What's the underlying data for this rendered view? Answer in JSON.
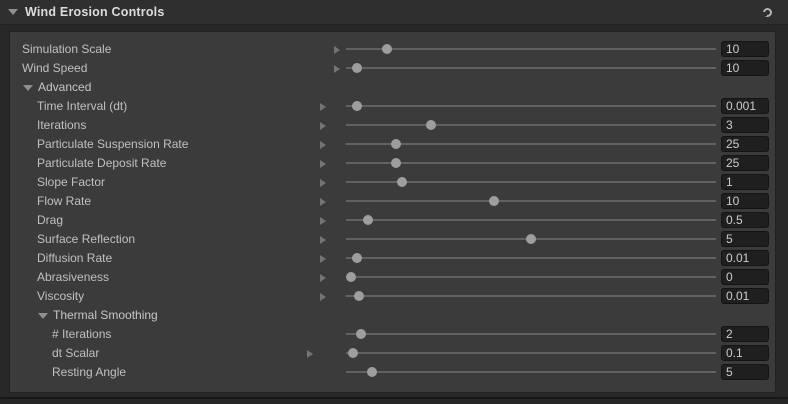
{
  "header": {
    "title": "Wind Erosion Controls",
    "collapse_icon": "triangle-down",
    "options_icon": "preset-circle"
  },
  "colors": {
    "outer_bg": "#282828",
    "header_bg": "#2f2f2f",
    "panel_bg": "#3b3b3b",
    "track": "#616161",
    "handle": "#9e9e9e",
    "field_bg": "#1f1f1f",
    "label_text": "#c0c0c0",
    "value_text": "#cdcdcd"
  },
  "rows": [
    {
      "type": "slider",
      "label": "Simulation Scale",
      "value": "10",
      "percent": 11,
      "indent": 1,
      "arrow": true
    },
    {
      "type": "slider",
      "label": "Wind Speed",
      "value": "10",
      "percent": 3,
      "indent": 1,
      "arrow": true
    },
    {
      "type": "foldout",
      "label": "Advanced",
      "state": "expanded",
      "indent": 1
    },
    {
      "type": "slider",
      "label": "Time Interval (dt)",
      "value": "0.001",
      "percent": 3,
      "indent": 2,
      "arrow": true
    },
    {
      "type": "slider",
      "label": "Iterations",
      "value": "3",
      "percent": 23,
      "indent": 2,
      "arrow": true
    },
    {
      "type": "slider",
      "label": "Particulate Suspension Rate",
      "value": "25",
      "percent": 13.5,
      "indent": 2,
      "arrow": true
    },
    {
      "type": "slider",
      "label": "Particulate Deposit Rate",
      "value": "25",
      "percent": 13.5,
      "indent": 2,
      "arrow": true
    },
    {
      "type": "slider",
      "label": "Slope Factor",
      "value": "1",
      "percent": 15,
      "indent": 2,
      "arrow": true
    },
    {
      "type": "slider",
      "label": "Flow Rate",
      "value": "10",
      "percent": 40,
      "indent": 2,
      "arrow": true
    },
    {
      "type": "slider",
      "label": "Drag",
      "value": "0.5",
      "percent": 6,
      "indent": 2,
      "arrow": true
    },
    {
      "type": "slider",
      "label": "Surface Reflection",
      "value": "5",
      "percent": 50,
      "indent": 2,
      "arrow": true
    },
    {
      "type": "slider",
      "label": "Diffusion Rate",
      "value": "0.01",
      "percent": 3,
      "indent": 2,
      "arrow": true
    },
    {
      "type": "slider",
      "label": "Abrasiveness",
      "value": "0",
      "percent": 1.4,
      "indent": 2,
      "arrow": true
    },
    {
      "type": "slider",
      "label": "Viscosity",
      "value": "0.01",
      "percent": 3.5,
      "indent": 2,
      "arrow": true
    },
    {
      "type": "foldout",
      "label": "Thermal Smoothing",
      "state": "expanded",
      "indent": 2
    },
    {
      "type": "slider",
      "label": "# Iterations",
      "value": "2",
      "percent": 4,
      "indent": 3,
      "arrow": false
    },
    {
      "type": "slider",
      "label": "dt Scalar",
      "value": "0.1",
      "percent": 2,
      "indent": 3,
      "arrow": true
    },
    {
      "type": "slider",
      "label": "Resting Angle",
      "value": "5",
      "percent": 7,
      "indent": 3,
      "arrow": false
    }
  ]
}
